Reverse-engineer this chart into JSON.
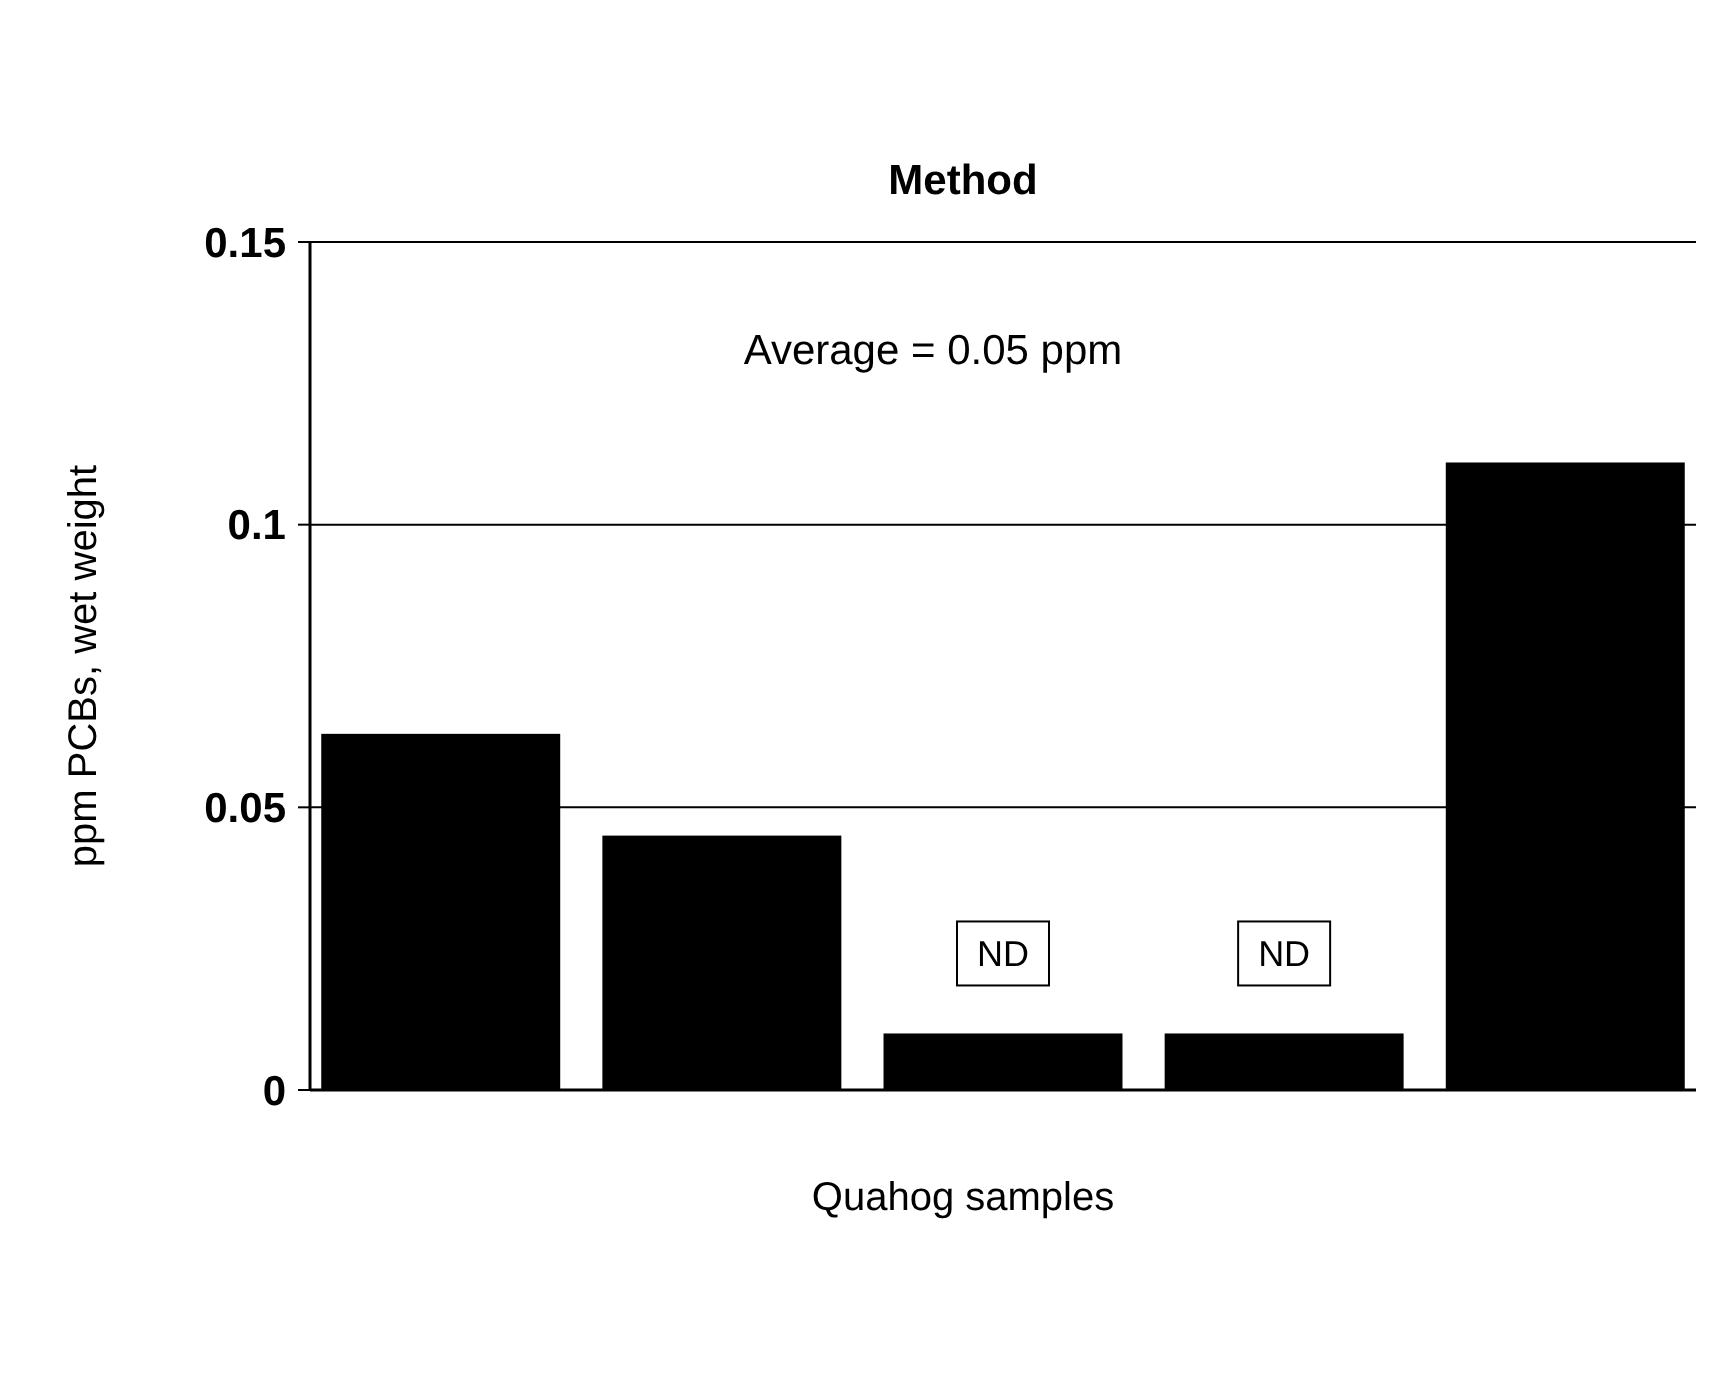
{
  "chart_data": {
    "type": "bar",
    "title": "Method",
    "xlabel": "Quahog samples",
    "ylabel": "ppm PCBs, wet weight",
    "categories": [
      null,
      null,
      null,
      null,
      null
    ],
    "values": [
      0.063,
      0.045,
      0.01,
      0.01,
      0.111
    ],
    "value_labels": [
      null,
      null,
      "ND",
      "ND",
      null
    ],
    "color": "#000000",
    "ylim": [
      0,
      0.15
    ],
    "yticks": [
      0,
      0.05,
      0.1,
      0.15
    ],
    "grid": "y",
    "annotations": [
      "Average = 0.05 ppm"
    ]
  }
}
